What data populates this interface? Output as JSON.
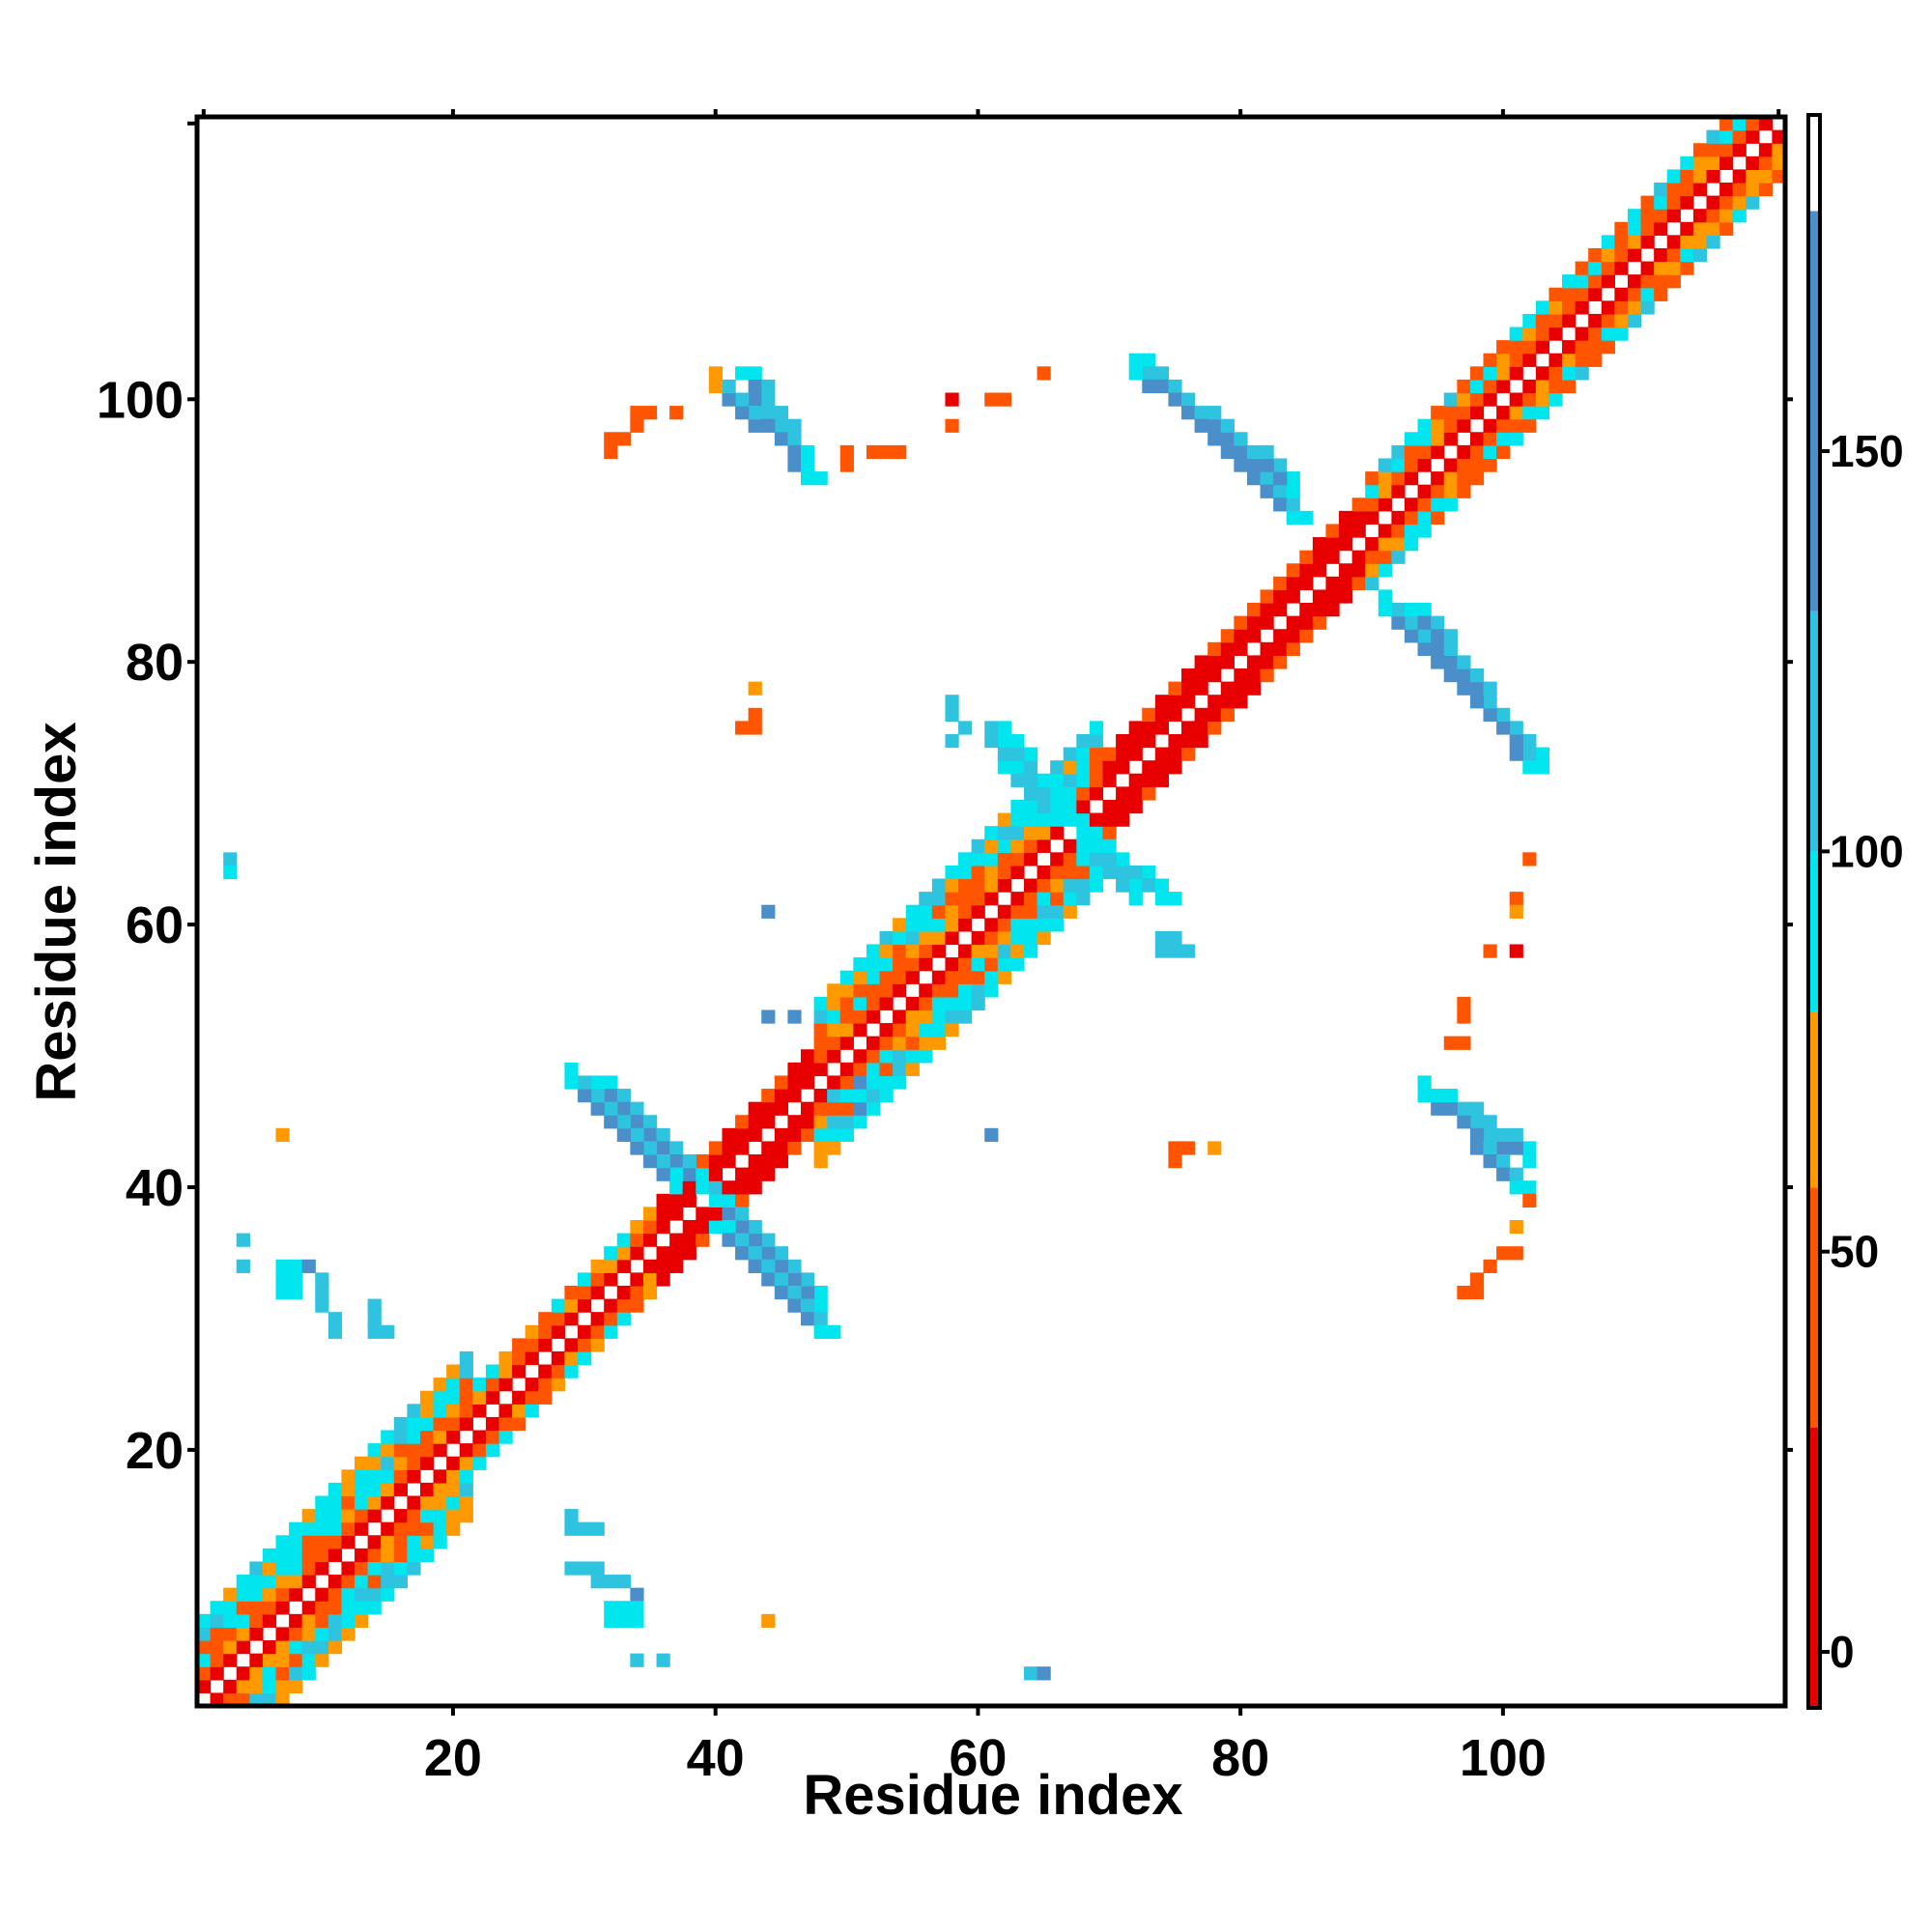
{
  "chart_data": {
    "type": "heatmap",
    "title": "",
    "xlabel": "Residue index",
    "ylabel": "Residue index",
    "xlim": [
      1,
      121
    ],
    "ylim": [
      1,
      121
    ],
    "x_ticks": [
      20,
      40,
      60,
      80,
      100
    ],
    "y_ticks": [
      20,
      40,
      60,
      80,
      100
    ],
    "grid": false,
    "colorbar": {
      "ticks": [
        0,
        50,
        100,
        150
      ],
      "range": [
        -7,
        192
      ],
      "bands": [
        {
          "from": -7,
          "to": 28,
          "color": "#e80000"
        },
        {
          "from": 28,
          "to": 58,
          "color": "#ff5500"
        },
        {
          "from": 58,
          "to": 80,
          "color": "#ff9900"
        },
        {
          "from": 80,
          "to": 100,
          "color": "#00e5ee"
        },
        {
          "from": 100,
          "to": 130,
          "color": "#2ec4e0"
        },
        {
          "from": 130,
          "to": 180,
          "color": "#4a8fc9"
        },
        {
          "from": 180,
          "to": 192,
          "color": "#ffffff"
        }
      ]
    },
    "diagonal_band": [
      {
        "from": 1,
        "to": 8,
        "width": 6,
        "pattern": "mixed"
      },
      {
        "from": 8,
        "to": 22,
        "width": 6,
        "pattern": "mixed"
      },
      {
        "from": 22,
        "to": 36,
        "width": 3,
        "pattern": "orange"
      },
      {
        "from": 36,
        "to": 48,
        "width": 3,
        "pattern": "red"
      },
      {
        "from": 48,
        "to": 70,
        "width": 6,
        "pattern": "mixed"
      },
      {
        "from": 70,
        "to": 90,
        "width": 3,
        "pattern": "red"
      },
      {
        "from": 90,
        "to": 121,
        "width": 4,
        "pattern": "mixed"
      }
    ],
    "strands": [
      {
        "x0": 31,
        "y0": 48,
        "x1": 40,
        "y1": 39,
        "width": 2,
        "value": 150
      },
      {
        "x0": 40,
        "y0": 37,
        "x1": 48,
        "y1": 29,
        "width": 2,
        "value": 150
      },
      {
        "x0": 42,
        "y0": 102,
        "x1": 47,
        "y1": 94,
        "width": 2,
        "value": 150
      },
      {
        "x0": 72,
        "y0": 103,
        "x1": 84,
        "y1": 91,
        "width": 2,
        "value": 150
      },
      {
        "x0": 93,
        "y0": 84,
        "x1": 102,
        "y1": 72,
        "width": 2,
        "value": 150
      },
      {
        "x0": 95,
        "y0": 47,
        "x1": 101,
        "y1": 40,
        "width": 2,
        "value": 150
      },
      {
        "x0": 62,
        "y0": 72,
        "x1": 66,
        "y1": 68,
        "width": 3,
        "value": 110
      },
      {
        "x0": 69,
        "y0": 66,
        "x1": 74,
        "y1": 62,
        "width": 2,
        "value": 110
      }
    ],
    "points": [
      {
        "x": 3,
        "y": 65,
        "value": 120
      },
      {
        "x": 3,
        "y": 64,
        "value": 90
      },
      {
        "x": 4,
        "y": 36,
        "value": 120
      },
      {
        "x": 4,
        "y": 34,
        "value": 120
      },
      {
        "x": 7,
        "y": 44,
        "value": 65
      },
      {
        "x": 7,
        "y": 34,
        "value": 95
      },
      {
        "x": 8,
        "y": 34,
        "value": 95
      },
      {
        "x": 7,
        "y": 33,
        "value": 95
      },
      {
        "x": 8,
        "y": 33,
        "value": 95
      },
      {
        "x": 7,
        "y": 32,
        "value": 95
      },
      {
        "x": 8,
        "y": 32,
        "value": 95
      },
      {
        "x": 9,
        "y": 34,
        "value": 150
      },
      {
        "x": 10,
        "y": 33,
        "value": 120
      },
      {
        "x": 10,
        "y": 32,
        "value": 120
      },
      {
        "x": 10,
        "y": 31,
        "value": 120
      },
      {
        "x": 11,
        "y": 30,
        "value": 120
      },
      {
        "x": 11,
        "y": 29,
        "value": 120
      },
      {
        "x": 14,
        "y": 31,
        "value": 110
      },
      {
        "x": 14,
        "y": 30,
        "value": 110
      },
      {
        "x": 14,
        "y": 29,
        "value": 110
      },
      {
        "x": 15,
        "y": 29,
        "value": 110
      },
      {
        "x": 29,
        "y": 15,
        "value": 110
      },
      {
        "x": 29,
        "y": 14,
        "value": 110
      },
      {
        "x": 30,
        "y": 14,
        "value": 110
      },
      {
        "x": 31,
        "y": 14,
        "value": 110
      },
      {
        "x": 29,
        "y": 11,
        "value": 110
      },
      {
        "x": 30,
        "y": 11,
        "value": 110
      },
      {
        "x": 31,
        "y": 11,
        "value": 110
      },
      {
        "x": 31,
        "y": 10,
        "value": 110
      },
      {
        "x": 32,
        "y": 10,
        "value": 110
      },
      {
        "x": 33,
        "y": 10,
        "value": 110
      },
      {
        "x": 34,
        "y": 9,
        "value": 150
      },
      {
        "x": 32,
        "y": 8,
        "value": 95
      },
      {
        "x": 33,
        "y": 8,
        "value": 95
      },
      {
        "x": 34,
        "y": 8,
        "value": 95
      },
      {
        "x": 32,
        "y": 7,
        "value": 95
      },
      {
        "x": 33,
        "y": 7,
        "value": 95
      },
      {
        "x": 34,
        "y": 7,
        "value": 95
      },
      {
        "x": 34,
        "y": 4,
        "value": 110
      },
      {
        "x": 36,
        "y": 4,
        "value": 110
      },
      {
        "x": 44,
        "y": 7,
        "value": 65
      },
      {
        "x": 64,
        "y": 3,
        "value": 110
      },
      {
        "x": 65,
        "y": 3,
        "value": 150
      },
      {
        "x": 32,
        "y": 97,
        "value": 55
      },
      {
        "x": 32,
        "y": 96,
        "value": 55
      },
      {
        "x": 33,
        "y": 97,
        "value": 55
      },
      {
        "x": 34,
        "y": 98,
        "value": 55
      },
      {
        "x": 34,
        "y": 99,
        "value": 55
      },
      {
        "x": 35,
        "y": 99,
        "value": 55
      },
      {
        "x": 37,
        "y": 99,
        "value": 55
      },
      {
        "x": 40,
        "y": 102,
        "value": 65
      },
      {
        "x": 40,
        "y": 101,
        "value": 65
      },
      {
        "x": 50,
        "y": 96,
        "value": 55
      },
      {
        "x": 50,
        "y": 95,
        "value": 55
      },
      {
        "x": 52,
        "y": 96,
        "value": 55
      },
      {
        "x": 54,
        "y": 96,
        "value": 55
      },
      {
        "x": 53,
        "y": 96,
        "value": 55
      },
      {
        "x": 58,
        "y": 100,
        "value": 10
      },
      {
        "x": 58,
        "y": 98,
        "value": 55
      },
      {
        "x": 61,
        "y": 100,
        "value": 55
      },
      {
        "x": 62,
        "y": 100,
        "value": 55
      },
      {
        "x": 65,
        "y": 102,
        "value": 55
      },
      {
        "x": 43,
        "y": 78,
        "value": 65
      },
      {
        "x": 43,
        "y": 76,
        "value": 55
      },
      {
        "x": 42,
        "y": 75,
        "value": 55
      },
      {
        "x": 43,
        "y": 75,
        "value": 55
      },
      {
        "x": 58,
        "y": 77,
        "value": 110
      },
      {
        "x": 58,
        "y": 76,
        "value": 110
      },
      {
        "x": 59,
        "y": 75,
        "value": 110
      },
      {
        "x": 58,
        "y": 74,
        "value": 110
      },
      {
        "x": 61,
        "y": 75,
        "value": 110
      },
      {
        "x": 61,
        "y": 74,
        "value": 110
      },
      {
        "x": 62,
        "y": 73,
        "value": 110
      },
      {
        "x": 44,
        "y": 61,
        "value": 150
      },
      {
        "x": 44,
        "y": 53,
        "value": 150
      },
      {
        "x": 46,
        "y": 53,
        "value": 150
      },
      {
        "x": 49,
        "y": 47,
        "value": 120
      },
      {
        "x": 51,
        "y": 48,
        "value": 150
      },
      {
        "x": 51,
        "y": 46,
        "value": 150
      },
      {
        "x": 61,
        "y": 44,
        "value": 150
      },
      {
        "x": 75,
        "y": 43,
        "value": 55
      },
      {
        "x": 76,
        "y": 43,
        "value": 55
      },
      {
        "x": 75,
        "y": 42,
        "value": 55
      },
      {
        "x": 78,
        "y": 43,
        "value": 65
      },
      {
        "x": 74,
        "y": 59,
        "value": 110
      },
      {
        "x": 75,
        "y": 59,
        "value": 110
      },
      {
        "x": 76,
        "y": 58,
        "value": 110
      },
      {
        "x": 75,
        "y": 58,
        "value": 110
      },
      {
        "x": 74,
        "y": 58,
        "value": 110
      },
      {
        "x": 102,
        "y": 65,
        "value": 55
      },
      {
        "x": 101,
        "y": 62,
        "value": 55
      },
      {
        "x": 101,
        "y": 61,
        "value": 65
      },
      {
        "x": 99,
        "y": 58,
        "value": 55
      },
      {
        "x": 101,
        "y": 58,
        "value": 10
      },
      {
        "x": 97,
        "y": 54,
        "value": 55
      },
      {
        "x": 97,
        "y": 53,
        "value": 55
      },
      {
        "x": 96,
        "y": 51,
        "value": 55
      },
      {
        "x": 97,
        "y": 51,
        "value": 55
      },
      {
        "x": 102,
        "y": 39,
        "value": 55
      },
      {
        "x": 101,
        "y": 37,
        "value": 65
      },
      {
        "x": 100,
        "y": 35,
        "value": 55
      },
      {
        "x": 101,
        "y": 35,
        "value": 55
      },
      {
        "x": 99,
        "y": 34,
        "value": 55
      },
      {
        "x": 98,
        "y": 33,
        "value": 55
      },
      {
        "x": 97,
        "y": 32,
        "value": 55
      },
      {
        "x": 98,
        "y": 32,
        "value": 55
      }
    ]
  }
}
